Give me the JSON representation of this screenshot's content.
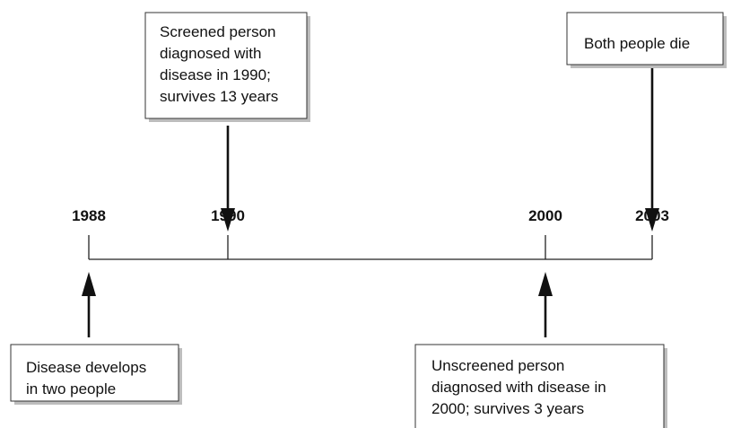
{
  "timeline": {
    "years": [
      "1988",
      "1990",
      "2000",
      "2003"
    ]
  },
  "boxes": [
    {
      "lines": [
        "Screened person",
        "diagnosed with",
        "disease in 1990;",
        "survives 13 years"
      ]
    },
    {
      "lines": [
        "Both people die"
      ]
    },
    {
      "lines": [
        "Disease develops",
        "in two people"
      ]
    },
    {
      "lines": [
        "Unscreened person",
        "diagnosed with disease in",
        "2000; survives 3 years"
      ]
    }
  ]
}
